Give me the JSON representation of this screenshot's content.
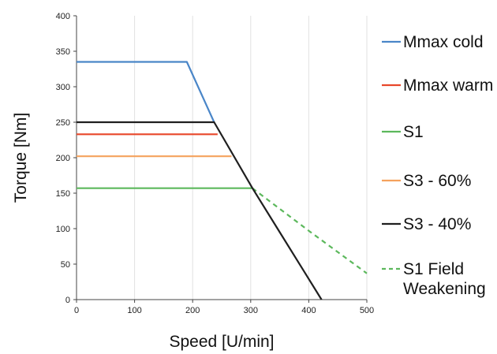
{
  "chart_data": {
    "type": "line",
    "xlabel": "Speed [U/min]",
    "ylabel": "Torque [Nm]",
    "xlim": [
      0,
      500
    ],
    "ylim": [
      0,
      400
    ],
    "x_ticks": [
      0,
      100,
      200,
      300,
      400,
      500
    ],
    "y_ticks": [
      0,
      50,
      100,
      150,
      200,
      250,
      300,
      350,
      400
    ],
    "grid": "vertical",
    "legend_position": "right",
    "series": [
      {
        "name": "Mmax cold",
        "color": "#4a86c8",
        "style": "solid",
        "x": [
          0,
          190,
          237
        ],
        "y": [
          335,
          335,
          250
        ]
      },
      {
        "name": "Mmax warm",
        "color": "#e8472a",
        "style": "solid",
        "x": [
          0,
          243
        ],
        "y": [
          233,
          233
        ]
      },
      {
        "name": "S1",
        "color": "#5cb85c",
        "style": "solid",
        "x": [
          0,
          303
        ],
        "y": [
          157,
          157
        ]
      },
      {
        "name": "S3 - 60%",
        "color": "#f5a25d",
        "style": "solid",
        "x": [
          0,
          267
        ],
        "y": [
          202,
          202
        ]
      },
      {
        "name": "S3 - 40%",
        "color": "#1f1f1f",
        "style": "solid",
        "x": [
          0,
          237,
          303,
          350,
          422
        ],
        "y": [
          250,
          250,
          157,
          95,
          0
        ]
      },
      {
        "name": "S1 Field Weakening",
        "name_lines": [
          "S1 Field",
          "Weakening"
        ],
        "color": "#5cb85c",
        "style": "dashed",
        "x": [
          303,
          400,
          500
        ],
        "y": [
          157,
          97,
          37
        ]
      }
    ]
  }
}
